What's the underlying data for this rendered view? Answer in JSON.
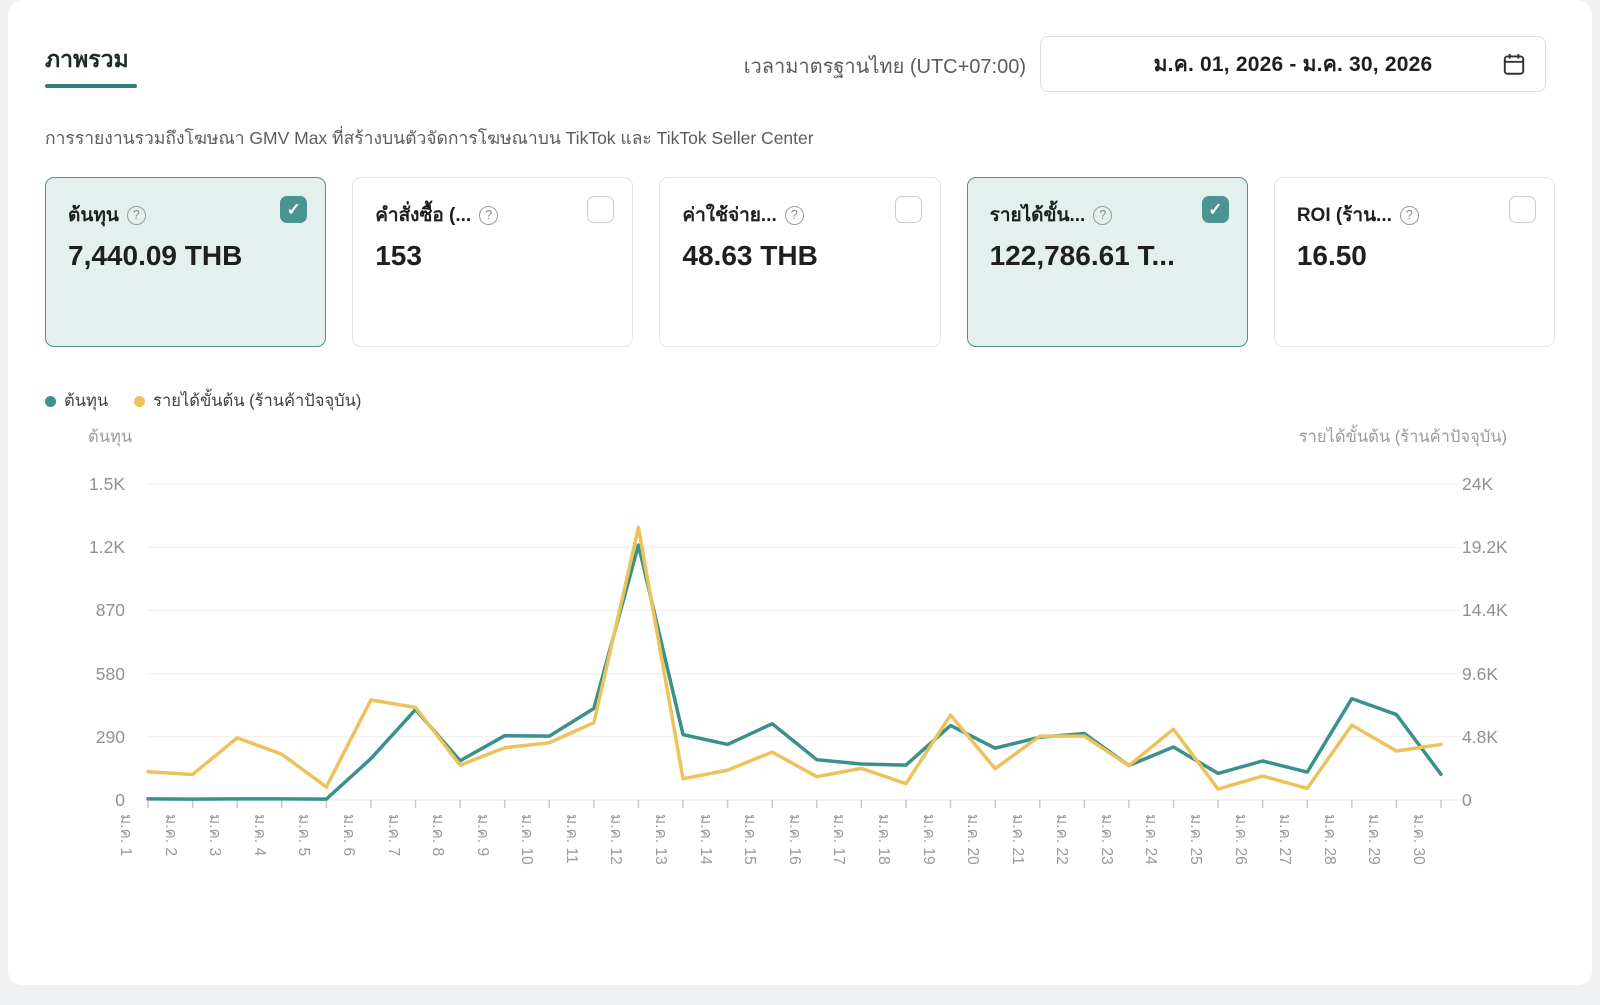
{
  "colors": {
    "accent_teal": "#2e7d78",
    "checkbox_teal": "#4a9591",
    "selected_card_bg": "#e4f0ee",
    "selected_card_border": "#4d938d",
    "series_cost": "#3a918a",
    "series_gross": "#ecc25c",
    "grid": "#ededed",
    "axis_line": "#e0e0e0"
  },
  "header": {
    "tab_label": "ภาพรวม",
    "timezone_label": "เวลามาตรฐานไทย (UTC+07:00)",
    "date_range": "ม.ค. 01, 2026  -  ม.ค. 30, 2026"
  },
  "subtitle": "การรายงานรวมถึงโฆษณา GMV Max ที่สร้างบนตัวจัดการโฆษณาบน TikTok และ TikTok Seller Center",
  "metric_cards": [
    {
      "label": "ต้นทุน",
      "value": "7,440.09 THB",
      "checked": true
    },
    {
      "label": "คำสั่งซื้อ (...",
      "value": "153",
      "checked": false
    },
    {
      "label": "ค่าใช้จ่าย...",
      "value": "48.63 THB",
      "checked": false
    },
    {
      "label": "รายได้ขั้น...",
      "value": "122,786.61 T...",
      "checked": true
    },
    {
      "label": "ROI (ร้าน...",
      "value": "16.50",
      "checked": false
    }
  ],
  "legend": [
    {
      "label": "ต้นทุน",
      "color": "#3a918a"
    },
    {
      "label": "รายได้ขั้นต้น (ร้านค้าปัจจุบัน)",
      "color": "#ecc25c"
    }
  ],
  "chart_data": {
    "type": "line",
    "x_categories": [
      "ม.ค. 1",
      "ม.ค. 2",
      "ม.ค. 3",
      "ม.ค. 4",
      "ม.ค. 5",
      "ม.ค. 6",
      "ม.ค. 7",
      "ม.ค. 8",
      "ม.ค. 9",
      "ม.ค. 10",
      "ม.ค. 11",
      "ม.ค. 12",
      "ม.ค. 13",
      "ม.ค. 14",
      "ม.ค. 15",
      "ม.ค. 16",
      "ม.ค. 17",
      "ม.ค. 18",
      "ม.ค. 19",
      "ม.ค. 20",
      "ม.ค. 21",
      "ม.ค. 22",
      "ม.ค. 23",
      "ม.ค. 24",
      "ม.ค. 25",
      "ม.ค. 26",
      "ม.ค. 27",
      "ม.ค. 28",
      "ม.ค. 29",
      "ม.ค. 30"
    ],
    "left_axis": {
      "title": "ต้นทุน",
      "ticks_bottom_up": [
        "0",
        "290",
        "580",
        "870",
        "1.2K",
        "1.5K"
      ],
      "max": 1450
    },
    "right_axis": {
      "title": "รายได้ขั้นต้น (ร้านค้าปัจจุบัน)",
      "ticks_bottom_up": [
        "0",
        "4.8K",
        "9.6K",
        "14.4K",
        "19.2K",
        "24K"
      ],
      "max": 24000
    },
    "grid": true,
    "legend_position": "top-left",
    "series": [
      {
        "name": "ต้นทุน",
        "axis": "left",
        "color": "#3a918a",
        "values": [
          5,
          4,
          5,
          5,
          4,
          190,
          415,
          180,
          295,
          293,
          420,
          1170,
          300,
          255,
          350,
          185,
          165,
          160,
          342,
          238,
          288,
          305,
          158,
          243,
          122,
          179,
          128,
          465,
          392,
          118
        ]
      },
      {
        "name": "รายได้ขั้นต้น (ร้านค้าปัจจุบัน)",
        "axis": "right",
        "color": "#ecc25c",
        "values": [
          2150,
          1940,
          4720,
          3480,
          990,
          7600,
          7030,
          2650,
          3970,
          4350,
          5870,
          20690,
          1610,
          2270,
          3640,
          1770,
          2400,
          1240,
          6450,
          2380,
          4850,
          4850,
          2610,
          5380,
          830,
          1820,
          880,
          5690,
          3720,
          4220
        ]
      }
    ]
  }
}
